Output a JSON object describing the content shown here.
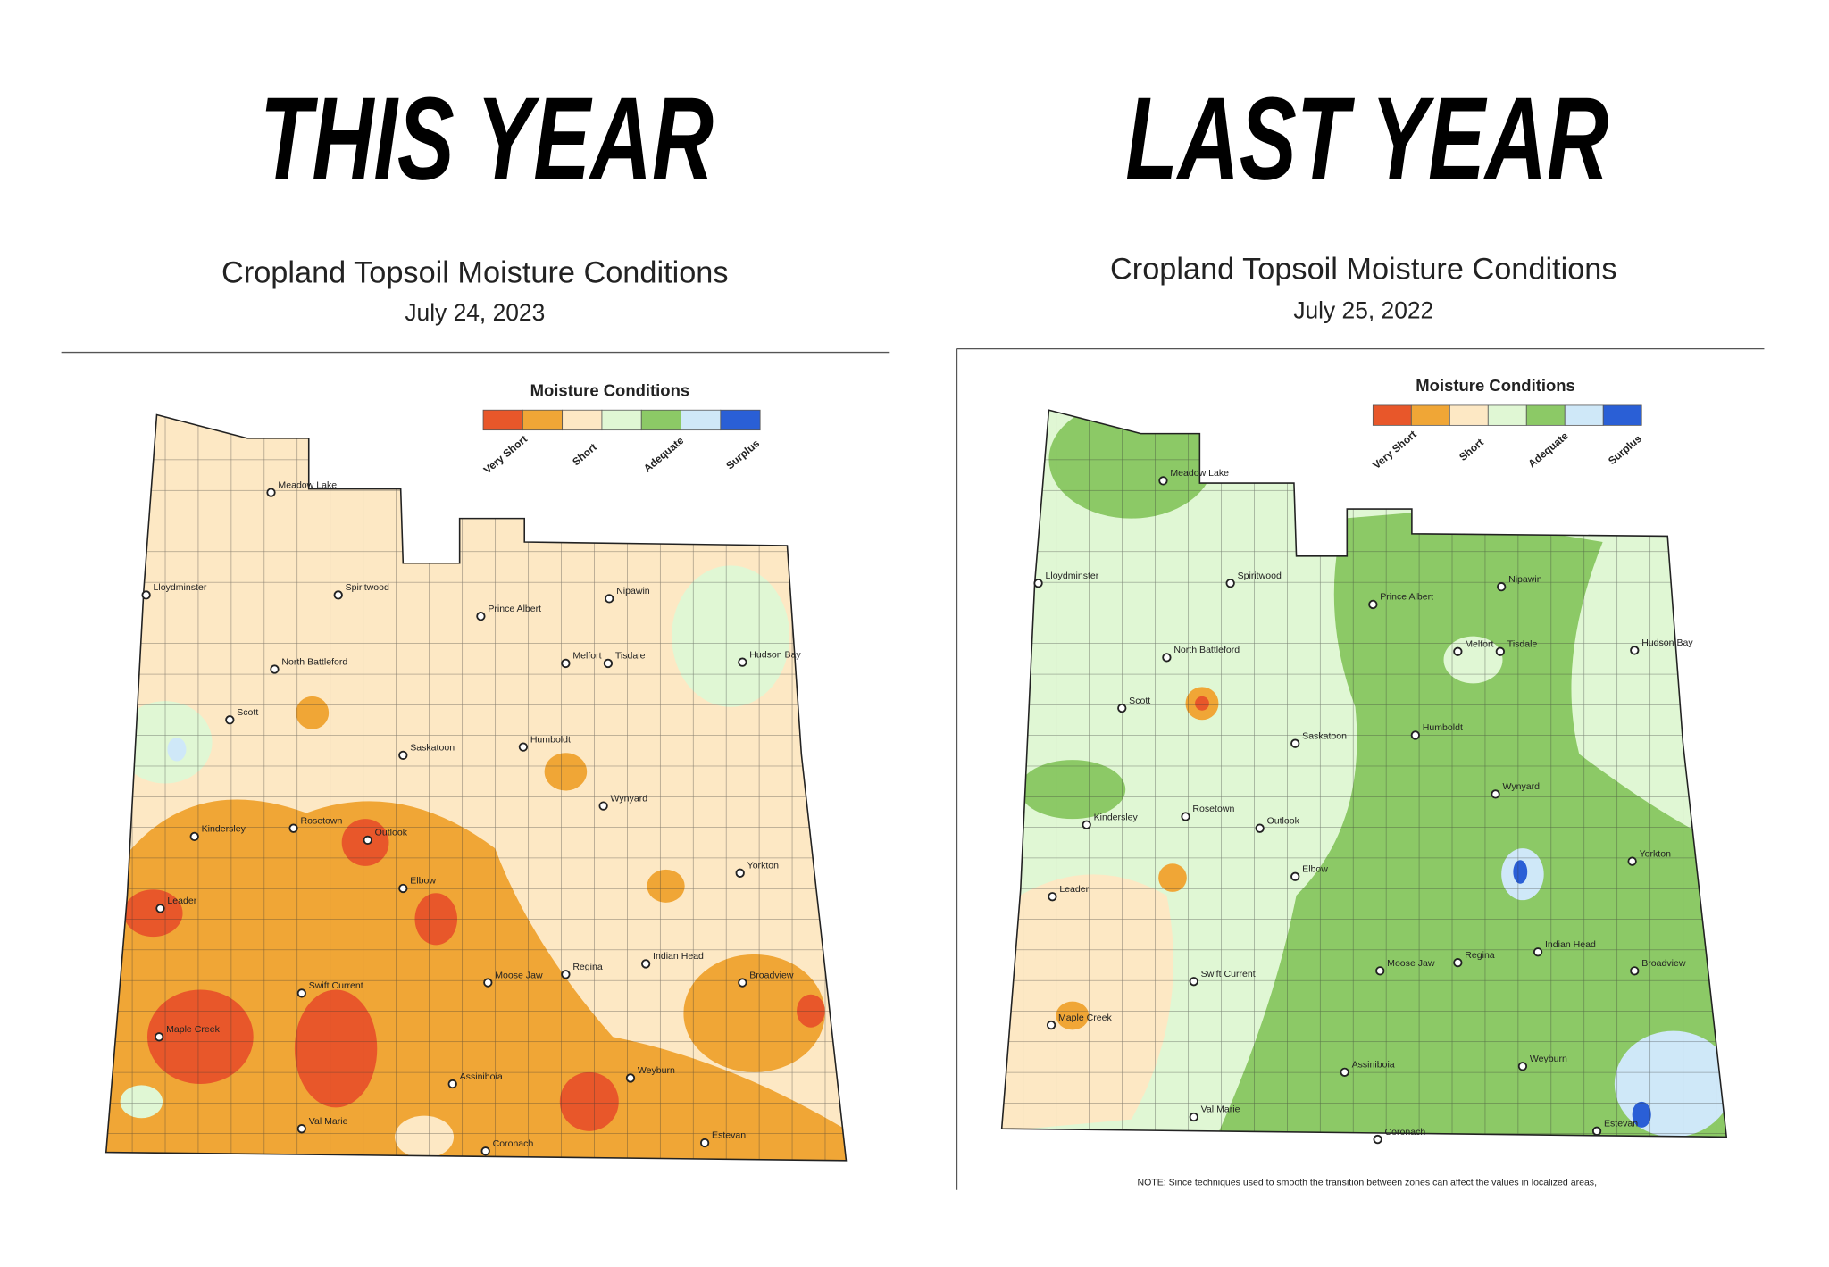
{
  "panels": [
    {
      "heading": "THIS YEAR",
      "title": "Cropland Topsoil Moisture Conditions",
      "date": "July 24, 2023"
    },
    {
      "heading": "LAST YEAR",
      "title": "Cropland Topsoil Moisture Conditions",
      "date": "July 25, 2022"
    }
  ],
  "legend": {
    "title": "Moisture Conditions",
    "labels": [
      "Very Short",
      "Short",
      "Adequate",
      "Surplus"
    ],
    "colors": [
      "#e8572a",
      "#f0a636",
      "#fde8c4",
      "#e0f7d4",
      "#8cc966",
      "#cfe8f8",
      "#2a5fd6"
    ]
  },
  "cities": [
    "Meadow Lake",
    "Lloydminster",
    "Spiritwood",
    "Prince Albert",
    "Nipawin",
    "North Battleford",
    "Melfort",
    "Tisdale",
    "Hudson Bay",
    "Scott",
    "Saskatoon",
    "Humboldt",
    "Kindersley",
    "Rosetown",
    "Outlook",
    "Wynyard",
    "Yorkton",
    "Elbow",
    "Leader",
    "Indian Head",
    "Moose Jaw",
    "Regina",
    "Swift Current",
    "Broadview",
    "Maple Creek",
    "Assiniboia",
    "Weyburn",
    "Val Marie",
    "Coronach",
    "Estevan"
  ],
  "note": "NOTE: Since techniques used to smooth the transition between zones can affect the values in localized areas,"
}
